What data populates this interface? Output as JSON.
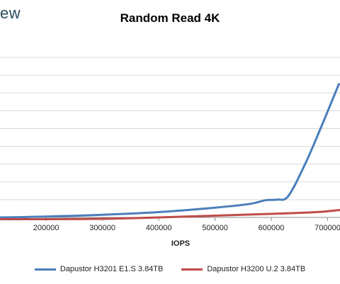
{
  "brand_fragment": "ew",
  "chart_data": {
    "type": "line",
    "title": "Random Read 4K",
    "xlabel": "IOPS",
    "ylabel": "",
    "xlim": [
      118000,
      722000
    ],
    "ylim": [
      0,
      1
    ],
    "x_ticks": [
      200000,
      300000,
      400000,
      500000,
      600000,
      700000
    ],
    "x_tick_labels": [
      "200000",
      "300000",
      "400000",
      "500000",
      "600000",
      "700000"
    ],
    "y_ticks": [
      0.0,
      0.1,
      0.2,
      0.3,
      0.4,
      0.5,
      0.6,
      0.7,
      0.8,
      0.9
    ],
    "y_tick_labels_visible": false,
    "grid": "horizontal",
    "legend_position": "bottom",
    "series": [
      {
        "name": "Dapustor H3201 E1.S 3.84TB",
        "color": "#4a7ebb",
        "points": [
          [
            118000,
            0.0
          ],
          [
            200000,
            0.005
          ],
          [
            300000,
            0.015
          ],
          [
            400000,
            0.03
          ],
          [
            500000,
            0.055
          ],
          [
            560000,
            0.075
          ],
          [
            590000,
            0.097
          ],
          [
            610000,
            0.1
          ],
          [
            630000,
            0.12
          ],
          [
            660000,
            0.3
          ],
          [
            690000,
            0.52
          ],
          [
            720000,
            0.75
          ]
        ]
      },
      {
        "name": "Dapustor H3200 U.2 3.84TB",
        "color": "#be4b48",
        "points": [
          [
            118000,
            -0.01
          ],
          [
            200000,
            -0.01
          ],
          [
            300000,
            -0.008
          ],
          [
            400000,
            0.0
          ],
          [
            500000,
            0.01
          ],
          [
            600000,
            0.02
          ],
          [
            680000,
            0.03
          ],
          [
            722000,
            0.042
          ]
        ]
      }
    ]
  }
}
